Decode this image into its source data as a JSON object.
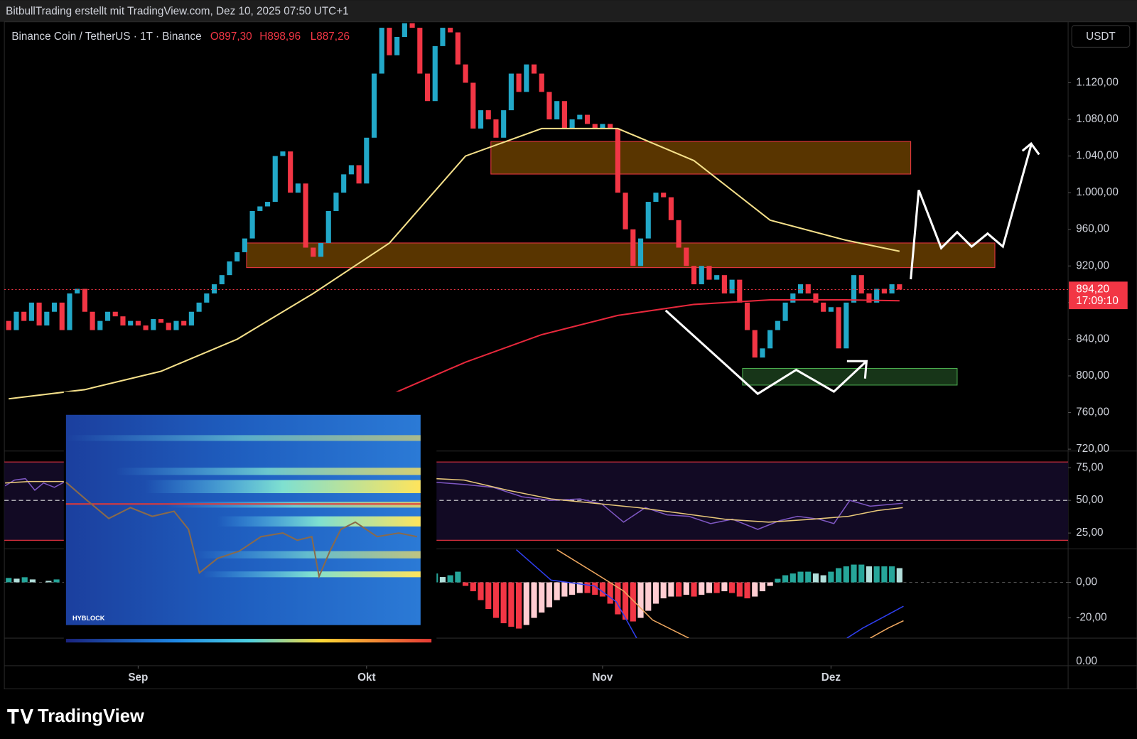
{
  "header": {
    "text": "BitbullTrading erstellt mit TradingView.com, Dez 10, 2025 07:50 UTC+1"
  },
  "symbol": {
    "name": "Binance Coin / TetherUS · 1T · Binance",
    "open": "O897,30",
    "high": "H898,96",
    "low": "L887,26"
  },
  "currency": "USDT",
  "chart_data": {
    "type": "candlestick",
    "first_open": 860,
    "close": [
      850,
      870,
      860,
      880,
      855,
      870,
      880,
      850,
      890,
      895,
      870,
      850,
      860,
      870,
      865,
      855,
      860,
      855,
      850,
      862,
      858,
      850,
      860,
      855,
      870,
      880,
      890,
      900,
      910,
      925,
      935,
      950,
      980,
      985,
      990,
      1040,
      1045,
      1000,
      1010,
      940,
      930,
      945,
      980,
      1000,
      1020,
      1030,
      1010,
      1060,
      1130,
      1180,
      1150,
      1170,
      1185,
      1180,
      1130,
      1100,
      1160,
      1180,
      1175,
      1140,
      1120,
      1070,
      1090,
      1080,
      1060,
      1090,
      1130,
      1110,
      1140,
      1130,
      1110,
      1080,
      1100,
      1070,
      1080,
      1085,
      1075,
      1070,
      1075,
      1070,
      1000,
      960,
      920,
      950,
      990,
      1000,
      995,
      970,
      940,
      920,
      900,
      920,
      905,
      910,
      890,
      905,
      880,
      850,
      820,
      830,
      850,
      860,
      880,
      890,
      900,
      890,
      880,
      870,
      875,
      830,
      880,
      910,
      890,
      880,
      895,
      890,
      900,
      894.2
    ],
    "up_color": "#22a8c8",
    "down_color": "#f23645",
    "ylim": [
      719.5,
      1186.5
    ],
    "yticks": [
      {
        "value": 720,
        "label": "720,00"
      },
      {
        "value": 760,
        "label": "760,00"
      },
      {
        "value": 800,
        "label": "800,00"
      },
      {
        "value": 840,
        "label": "840,00"
      },
      {
        "value": 880,
        "label": "880,00"
      },
      {
        "value": 920,
        "label": "920,00"
      },
      {
        "value": 960,
        "label": "960,00"
      },
      {
        "value": 1000,
        "label": "1.000,00"
      },
      {
        "value": 1040,
        "label": "1.040,00"
      },
      {
        "value": 1080,
        "label": "1.080,00"
      },
      {
        "value": 1120,
        "label": "1.120,00"
      }
    ],
    "xticks": [
      {
        "value": 17,
        "label": "Sep"
      },
      {
        "value": 47,
        "label": "Okt"
      },
      {
        "value": 78,
        "label": "Nov"
      },
      {
        "value": 108,
        "label": "Dez"
      }
    ],
    "last_price": {
      "value": 894.2,
      "label": "894,20"
    },
    "countdown": "17:09:10",
    "moving_averages": [
      {
        "color": "#f5e08a",
        "x": [
          0,
          10,
          20,
          30,
          40,
          50,
          60,
          70,
          80,
          90,
          100,
          110,
          117
        ],
        "values": [
          775,
          785,
          805,
          840,
          890,
          945,
          1040,
          1070,
          1070,
          1035,
          970,
          948,
          936
        ]
      },
      {
        "color": "#e8283c",
        "x": [
          50,
          60,
          70,
          80,
          90,
          100,
          110,
          117
        ],
        "values": [
          779,
          815,
          845,
          866,
          878,
          883,
          883,
          882
        ]
      }
    ]
  },
  "rsi": {
    "ylim": [
      12.8,
      87.2
    ],
    "yticks": [
      {
        "value": 75,
        "label": "75,00"
      },
      {
        "value": 50,
        "label": "50,00"
      },
      {
        "value": 25,
        "label": "25,00"
      }
    ]
  },
  "macd": {
    "type": "bar",
    "ylim": [
      -31.4,
      18.8
    ],
    "yticks": [
      {
        "value": 0,
        "label": "0,00"
      },
      {
        "value": -20,
        "label": "-20,00"
      }
    ],
    "x": [
      56,
      57,
      58,
      59,
      60,
      61,
      62,
      63,
      64,
      65,
      66,
      67,
      68,
      69,
      70,
      71,
      72,
      73,
      74,
      75,
      76,
      77,
      78,
      79,
      80,
      81,
      82,
      83,
      84,
      85,
      86,
      87,
      88,
      89,
      90,
      91,
      92,
      93,
      94,
      95,
      96,
      97,
      98,
      99,
      100,
      101,
      102,
      103,
      104,
      105,
      106,
      107,
      108,
      109,
      110,
      111,
      112,
      113,
      114,
      115,
      116,
      117
    ],
    "values": [
      5,
      3,
      4,
      6,
      -2,
      -5,
      -10,
      -15,
      -20,
      -23,
      -25,
      -26,
      -24,
      -20,
      -17,
      -14,
      -10,
      -8,
      -7,
      -6,
      -6,
      -7,
      -8,
      -12,
      -18,
      -21,
      -22,
      -20,
      -16,
      -12,
      -9,
      -8,
      -8,
      -7,
      -8,
      -7,
      -6,
      -6,
      -5,
      -6,
      -8,
      -9,
      -8,
      -5,
      -2,
      2,
      4,
      5,
      6,
      6,
      5,
      4,
      6,
      8,
      9,
      10,
      10,
      9,
      9,
      9,
      9,
      8
    ]
  },
  "lower_pane_tick": "0.00",
  "inset": {
    "brand": "HYBLOCK"
  },
  "footer": {
    "brand": "TradingView"
  }
}
